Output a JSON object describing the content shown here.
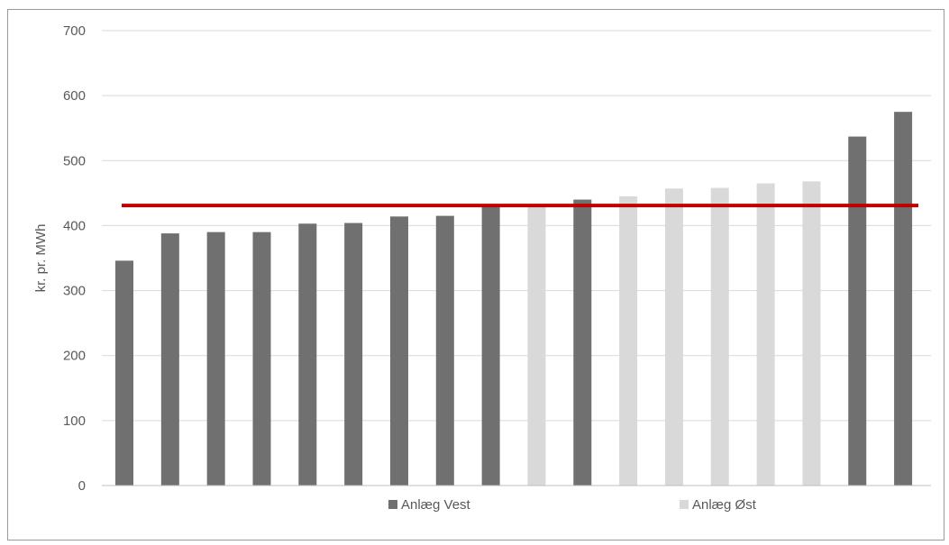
{
  "chart_data": {
    "type": "bar",
    "ylabel": "kr. pr. MWh",
    "ylim": [
      0,
      700
    ],
    "yticks": [
      "0",
      "100",
      "200",
      "300",
      "400",
      "500",
      "600",
      "700"
    ],
    "grid": true,
    "legend_position": "bottom",
    "series": [
      {
        "name": "Anlæg Vest",
        "color": "#707070"
      },
      {
        "name": "Anlæg Øst",
        "color": "#d9d9d9"
      }
    ],
    "bars": [
      {
        "series": "Anlæg Vest",
        "value": 346
      },
      {
        "series": "Anlæg Vest",
        "value": 388
      },
      {
        "series": "Anlæg Vest",
        "value": 390
      },
      {
        "series": "Anlæg Vest",
        "value": 390
      },
      {
        "series": "Anlæg Vest",
        "value": 403
      },
      {
        "series": "Anlæg Vest",
        "value": 404
      },
      {
        "series": "Anlæg Vest",
        "value": 414
      },
      {
        "series": "Anlæg Vest",
        "value": 415
      },
      {
        "series": "Anlæg Vest",
        "value": 430
      },
      {
        "series": "Anlæg Øst",
        "value": 430
      },
      {
        "series": "Anlæg Vest",
        "value": 440
      },
      {
        "series": "Anlæg Øst",
        "value": 445
      },
      {
        "series": "Anlæg Øst",
        "value": 457
      },
      {
        "series": "Anlæg Øst",
        "value": 458
      },
      {
        "series": "Anlæg Øst",
        "value": 465
      },
      {
        "series": "Anlæg Øst",
        "value": 468
      },
      {
        "series": "Anlæg Vest",
        "value": 537
      },
      {
        "series": "Anlæg Vest",
        "value": 575
      }
    ],
    "reference_line": {
      "value": 431,
      "color": "#c00000"
    }
  }
}
